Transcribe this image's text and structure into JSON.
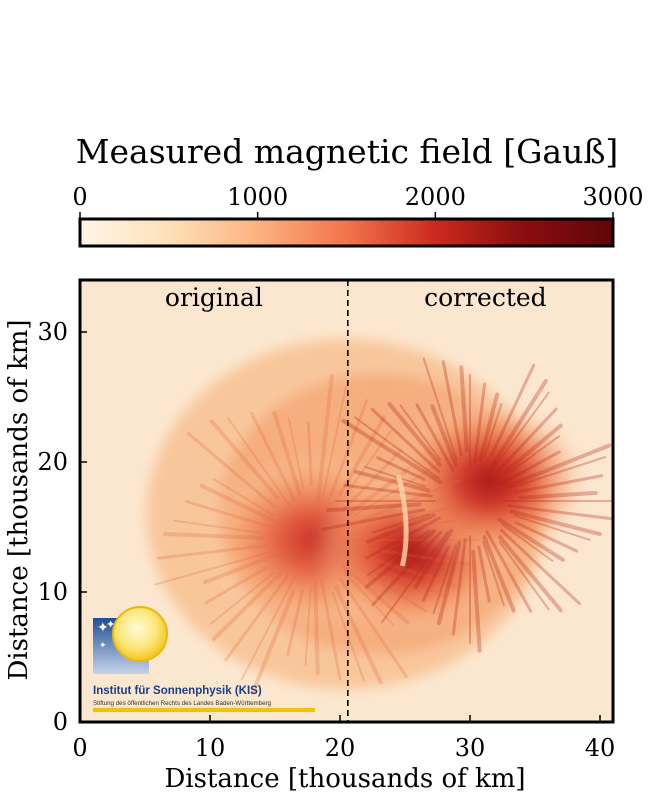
{
  "chart_data": {
    "type": "heatmap",
    "colorbar": {
      "title": "Measured magnetic field [Gauß]",
      "range": [
        0,
        3000
      ],
      "ticks": [
        0,
        1000,
        2000,
        3000
      ],
      "tick_labels": [
        "0",
        "1000",
        "2000",
        "3000"
      ],
      "colormap": [
        "#fff5e6",
        "#fde0b8",
        "#fcb27f",
        "#f2744a",
        "#cc2a1e",
        "#8a0d10",
        "#5e0608"
      ],
      "placement": "top"
    },
    "xlabel": "Distance [thousands of km]",
    "ylabel": "Distance [thousands of km]",
    "xlim": [
      0,
      41
    ],
    "ylim": [
      0,
      34
    ],
    "xticks": [
      0,
      10,
      20,
      30,
      40
    ],
    "xtick_labels": [
      "0",
      "10",
      "20",
      "30",
      "40"
    ],
    "yticks": [
      0,
      10,
      20,
      30
    ],
    "ytick_labels": [
      "0",
      "10",
      "20",
      "30"
    ],
    "divider_x": 20.6,
    "panel_labels": [
      "original",
      "corrected"
    ],
    "umbra_centers": {
      "original": [
        {
          "x": 18.0,
          "y": 14.0,
          "field": 2300
        }
      ],
      "corrected": [
        {
          "x": 25.5,
          "y": 13.0,
          "field": 2700
        },
        {
          "x": 31.5,
          "y": 18.5,
          "field": 2800
        }
      ]
    },
    "background_field": 300
  },
  "logo": {
    "name": "Institut für Sonnenphysik (KIS)",
    "subtitle": "Stiftung des öffentlichen Rechts des Landes Baden-Württemberg",
    "colors": {
      "square": "#3b66a8",
      "sun": "#f7d21e",
      "bar": "#f2c200"
    }
  }
}
